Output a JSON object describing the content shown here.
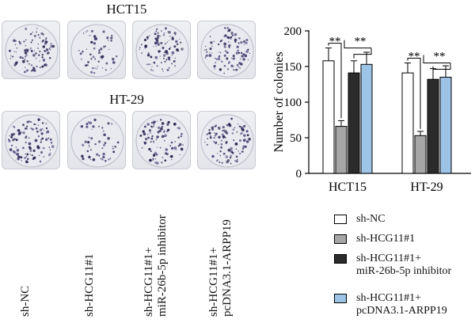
{
  "panel_titles": {
    "top": "HCT15",
    "bottom": "HT-29"
  },
  "groups": [
    "sh-NC",
    "sh-HCG11#1",
    "sh-HCG11#1+ miR-26b-5p inhibitor",
    "sh-HCG11#1+ pcDNA3.1-ARPP19"
  ],
  "group_labels": [
    [
      "sh-NC"
    ],
    [
      "sh-HCG11#1"
    ],
    [
      "sh-HCG11#1+",
      "miR-26b-5p inhibitor"
    ],
    [
      "sh-HCG11#1+",
      "pcDNA3.1-ARPP19"
    ]
  ],
  "colony_density": {
    "HCT15": [
      0.9,
      0.45,
      0.8,
      0.85
    ],
    "HT-29": [
      0.85,
      0.4,
      0.8,
      0.85
    ]
  },
  "chart_data": {
    "type": "bar",
    "categories": [
      "HCT15",
      "HT-29"
    ],
    "ylabel": "Number of colonies",
    "xlabel": "",
    "ylim": [
      0,
      200
    ],
    "yticks": [
      0,
      50,
      100,
      150,
      200
    ],
    "grid": false,
    "legend_position": "bottom",
    "series": [
      {
        "name": "sh-NC",
        "values": [
          158,
          141
        ],
        "errors": [
          18,
          14
        ],
        "color": "#ffffff"
      },
      {
        "name": "sh-HCG11#1",
        "values": [
          66,
          53
        ],
        "errors": [
          8,
          6
        ],
        "color": "#a6a6a6"
      },
      {
        "name": "sh-HCG11#1+ miR-26b-5p inhibitor",
        "values": [
          141,
          132
        ],
        "errors": [
          17,
          15
        ],
        "color": "#2b2b2b"
      },
      {
        "name": "sh-HCG11#1+ pcDNA3.1-ARPP19",
        "values": [
          153,
          135
        ],
        "errors": [
          17,
          16
        ],
        "color": "#9dc3e6"
      }
    ],
    "significance": [
      {
        "category": "HCT15",
        "label": "**"
      },
      {
        "category": "HCT15",
        "label": "**"
      },
      {
        "category": "HT-29",
        "label": "**"
      },
      {
        "category": "HT-29",
        "label": "**"
      }
    ]
  },
  "legend": [
    {
      "lines": [
        "sh-NC"
      ],
      "color": "#ffffff"
    },
    {
      "lines": [
        "sh-HCG11#1"
      ],
      "color": "#a6a6a6"
    },
    {
      "lines": [
        "sh-HCG11#1+",
        "miR-26b-5p inhibitor"
      ],
      "color": "#2b2b2b"
    },
    {
      "lines": [
        "sh-HCG11#1+",
        "pcDNA3.1-ARPP19"
      ],
      "color": "#9dc3e6"
    }
  ]
}
